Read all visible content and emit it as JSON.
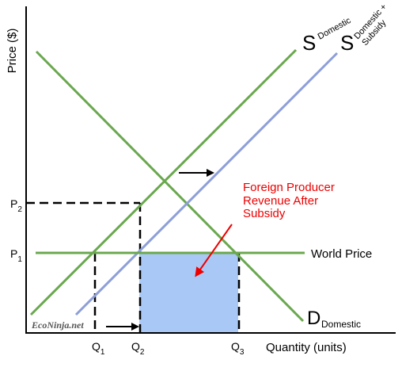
{
  "axes": {
    "y_label": "Price ($)",
    "x_label": "Quantity (units)"
  },
  "price_ticks": {
    "p2": {
      "main": "P",
      "sub": "2"
    },
    "p1": {
      "main": "P",
      "sub": "1"
    }
  },
  "quantity_ticks": {
    "q1": {
      "main": "Q",
      "sub": "1"
    },
    "q2": {
      "main": "Q",
      "sub": "2"
    },
    "q3": {
      "main": "Q",
      "sub": "3"
    }
  },
  "curves": {
    "supply_domestic": {
      "main": "S",
      "sub": "Domestic",
      "color": "#6aa84f"
    },
    "supply_subsidy": {
      "main": "S",
      "sub_line1": "Domestic +",
      "sub_line2": "Subsidy",
      "color": "#8e9fd8"
    },
    "demand_domestic": {
      "main": "D",
      "sub": "Domestic",
      "color": "#6aa84f"
    },
    "world_price": {
      "label": "World Price",
      "color": "#6aa84f"
    }
  },
  "annotation": {
    "line1": "Foreign Producer",
    "line2": "Revenue After",
    "line3": "Subsidy",
    "color": "#ee0000"
  },
  "region": {
    "fill": "#a9c8f5"
  },
  "watermark": "EcoNinja.net"
}
